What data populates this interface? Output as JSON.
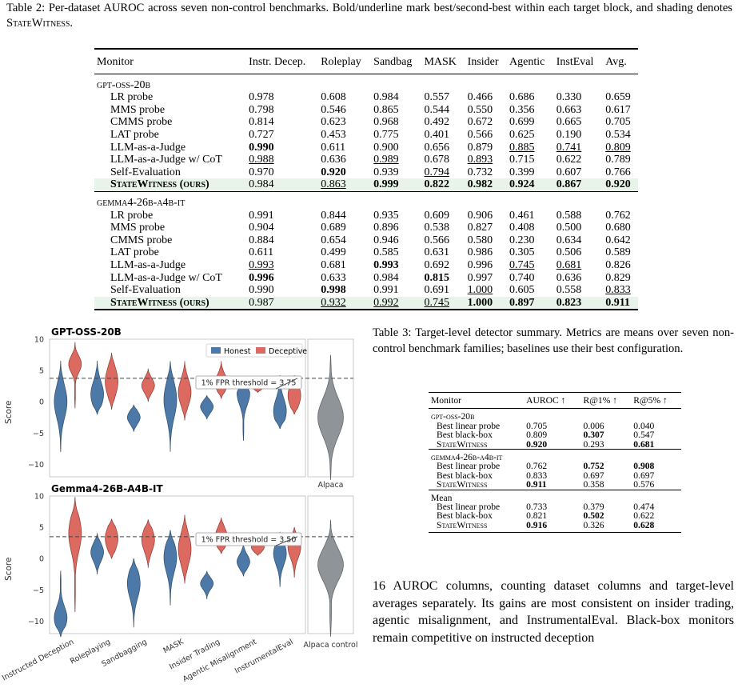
{
  "table2": {
    "caption_label": "Table 2:",
    "caption_text": "Per-dataset AUROC across seven non-control benchmarks. Bold/underline mark best/second-best within each target block, and shading denotes StateWitness.",
    "columns": [
      "Monitor",
      "Instr. Decep.",
      "Roleplay",
      "Sandbag",
      "MASK",
      "Insider",
      "Agentic",
      "InstEval",
      "Avg."
    ],
    "groups": [
      {
        "name": "gpt-oss-20b",
        "rows": [
          {
            "monitor": "LR probe",
            "values": [
              "0.978",
              "0.608",
              "0.984",
              "0.557",
              "0.466",
              "0.686",
              "0.330",
              "0.659"
            ],
            "fmt": [
              "",
              "",
              "",
              "",
              "",
              "",
              "",
              ""
            ]
          },
          {
            "monitor": "MMS probe",
            "values": [
              "0.798",
              "0.546",
              "0.865",
              "0.544",
              "0.550",
              "0.356",
              "0.663",
              "0.617"
            ],
            "fmt": [
              "",
              "",
              "",
              "",
              "",
              "",
              "",
              ""
            ]
          },
          {
            "monitor": "CMMS probe",
            "values": [
              "0.814",
              "0.623",
              "0.968",
              "0.492",
              "0.672",
              "0.699",
              "0.665",
              "0.705"
            ],
            "fmt": [
              "",
              "",
              "",
              "",
              "",
              "",
              "",
              ""
            ]
          },
          {
            "monitor": "LAT probe",
            "values": [
              "0.727",
              "0.453",
              "0.775",
              "0.401",
              "0.566",
              "0.625",
              "0.190",
              "0.534"
            ],
            "fmt": [
              "",
              "",
              "",
              "",
              "",
              "",
              "",
              ""
            ]
          },
          {
            "monitor": "LLM-as-a-Judge",
            "values": [
              "0.990",
              "0.611",
              "0.900",
              "0.656",
              "0.879",
              "0.885",
              "0.741",
              "0.809"
            ],
            "fmt": [
              "b",
              "",
              "",
              "",
              "",
              "u",
              "u",
              "u"
            ]
          },
          {
            "monitor": "LLM-as-a-Judge w/ CoT",
            "values": [
              "0.988",
              "0.636",
              "0.989",
              "0.678",
              "0.893",
              "0.715",
              "0.622",
              "0.789"
            ],
            "fmt": [
              "u",
              "",
              "u",
              "",
              "u",
              "",
              "",
              ""
            ]
          },
          {
            "monitor": "Self-Evaluation",
            "values": [
              "0.970",
              "0.920",
              "0.939",
              "0.794",
              "0.732",
              "0.399",
              "0.607",
              "0.766"
            ],
            "fmt": [
              "",
              "b",
              "",
              "u",
              "",
              "",
              "",
              ""
            ]
          },
          {
            "monitor": "StateWitness (ours)",
            "values": [
              "0.984",
              "0.863",
              "0.999",
              "0.822",
              "0.982",
              "0.924",
              "0.867",
              "0.920"
            ],
            "fmt": [
              "n",
              "nu",
              "b",
              "b",
              "b",
              "b",
              "b",
              "b"
            ],
            "ours": true
          }
        ]
      },
      {
        "name": "gemma4-26b-a4b-it",
        "rows": [
          {
            "monitor": "LR probe",
            "values": [
              "0.991",
              "0.844",
              "0.935",
              "0.609",
              "0.906",
              "0.461",
              "0.588",
              "0.762"
            ],
            "fmt": [
              "",
              "",
              "",
              "",
              "",
              "",
              "",
              ""
            ]
          },
          {
            "monitor": "MMS probe",
            "values": [
              "0.904",
              "0.689",
              "0.896",
              "0.538",
              "0.827",
              "0.408",
              "0.500",
              "0.680"
            ],
            "fmt": [
              "",
              "",
              "",
              "",
              "",
              "",
              "",
              ""
            ]
          },
          {
            "monitor": "CMMS probe",
            "values": [
              "0.884",
              "0.654",
              "0.946",
              "0.566",
              "0.580",
              "0.230",
              "0.634",
              "0.642"
            ],
            "fmt": [
              "",
              "",
              "",
              "",
              "",
              "",
              "",
              ""
            ]
          },
          {
            "monitor": "LAT probe",
            "values": [
              "0.611",
              "0.499",
              "0.585",
              "0.631",
              "0.986",
              "0.305",
              "0.506",
              "0.589"
            ],
            "fmt": [
              "",
              "",
              "",
              "",
              "",
              "",
              "",
              ""
            ]
          },
          {
            "monitor": "LLM-as-a-Judge",
            "values": [
              "0.993",
              "0.681",
              "0.993",
              "0.692",
              "0.996",
              "0.745",
              "0.681",
              "0.826"
            ],
            "fmt": [
              "u",
              "",
              "b",
              "",
              "",
              "u",
              "u",
              ""
            ]
          },
          {
            "monitor": "LLM-as-a-Judge w/ CoT",
            "values": [
              "0.996",
              "0.633",
              "0.984",
              "0.815",
              "0.997",
              "0.740",
              "0.636",
              "0.829"
            ],
            "fmt": [
              "b",
              "",
              "",
              "b",
              "",
              "",
              "",
              ""
            ]
          },
          {
            "monitor": "Self-Evaluation",
            "values": [
              "0.990",
              "0.998",
              "0.991",
              "0.691",
              "1.000",
              "0.605",
              "0.558",
              "0.833"
            ],
            "fmt": [
              "",
              "b",
              "",
              "",
              "u",
              "",
              "",
              "u"
            ]
          },
          {
            "monitor": "StateWitness (ours)",
            "values": [
              "0.987",
              "0.932",
              "0.992",
              "0.745",
              "1.000",
              "0.897",
              "0.823",
              "0.911"
            ],
            "fmt": [
              "n",
              "nu",
              "nu",
              "nu",
              "b",
              "b",
              "b",
              "b"
            ],
            "ours": true
          }
        ]
      }
    ]
  },
  "figure": {
    "panels": [
      {
        "title": "GPT-OSS-20B",
        "threshold_label": "1% FPR threshold = 3.75",
        "threshold": 3.75
      },
      {
        "title": "Gemma4-26B-A4B-IT",
        "threshold_label": "1% FPR threshold = 3.50",
        "threshold": 3.5
      }
    ],
    "ylabel": "Score",
    "yticks": [
      "10",
      "5",
      "0",
      "−5",
      "−10"
    ],
    "legend": {
      "honest": "Honest",
      "deceptive": "Deceptive"
    },
    "categories": [
      "Instructed Deception",
      "Roleplaying",
      "Sandbagging",
      "MASK",
      "Insider Trading",
      "Agentic Misalignment",
      "InstrumentalEval"
    ],
    "control_label_top": "Alpaca",
    "control_label_bottom": "Alpaca control",
    "colors": {
      "honest": "#4d79a8",
      "deceptive": "#dd6a60",
      "control": "#8f9499"
    }
  },
  "table3": {
    "caption_label": "Table 3:",
    "caption_text": "Target-level detector summary. Metrics are means over seven non-control benchmark families; baselines use their best configuration.",
    "columns": [
      "Monitor",
      "AUROC ↑",
      "R@1% ↑",
      "R@5% ↑"
    ],
    "groups": [
      {
        "name": "gpt-oss-20b",
        "rows": [
          {
            "monitor": "Best linear probe",
            "values": [
              "0.705",
              "0.006",
              "0.040"
            ],
            "fmt": [
              "",
              "",
              ""
            ]
          },
          {
            "monitor": "Best black-box",
            "values": [
              "0.809",
              "0.307",
              "0.547"
            ],
            "fmt": [
              "",
              "b",
              ""
            ]
          },
          {
            "monitor": "StateWitness",
            "values": [
              "0.920",
              "0.293",
              "0.681"
            ],
            "fmt": [
              "b",
              "",
              "b"
            ],
            "sw": true
          }
        ]
      },
      {
        "name": "gemma4-26b-a4b-it",
        "rows": [
          {
            "monitor": "Best linear probe",
            "values": [
              "0.762",
              "0.752",
              "0.908"
            ],
            "fmt": [
              "",
              "b",
              "b"
            ]
          },
          {
            "monitor": "Best black-box",
            "values": [
              "0.833",
              "0.697",
              "0.697"
            ],
            "fmt": [
              "",
              "",
              ""
            ]
          },
          {
            "monitor": "StateWitness",
            "values": [
              "0.911",
              "0.358",
              "0.576"
            ],
            "fmt": [
              "b",
              "",
              ""
            ],
            "sw": true
          }
        ]
      },
      {
        "name": "Mean",
        "plain": true,
        "rows": [
          {
            "monitor": "Best linear probe",
            "values": [
              "0.733",
              "0.379",
              "0.474"
            ],
            "fmt": [
              "",
              "",
              ""
            ]
          },
          {
            "monitor": "Best black-box",
            "values": [
              "0.821",
              "0.502",
              "0.622"
            ],
            "fmt": [
              "",
              "b",
              ""
            ]
          },
          {
            "monitor": "StateWitness",
            "values": [
              "0.916",
              "0.326",
              "0.628"
            ],
            "fmt": [
              "b",
              "",
              "b"
            ],
            "sw": true
          }
        ]
      }
    ]
  },
  "body_text": "16 AUROC columns, counting dataset columns and target-level averages separately. Its gains are most consistent on insider trading, agentic misalignment, and InstrumentalEval. Black-box monitors remain competitive on instructed deception"
}
